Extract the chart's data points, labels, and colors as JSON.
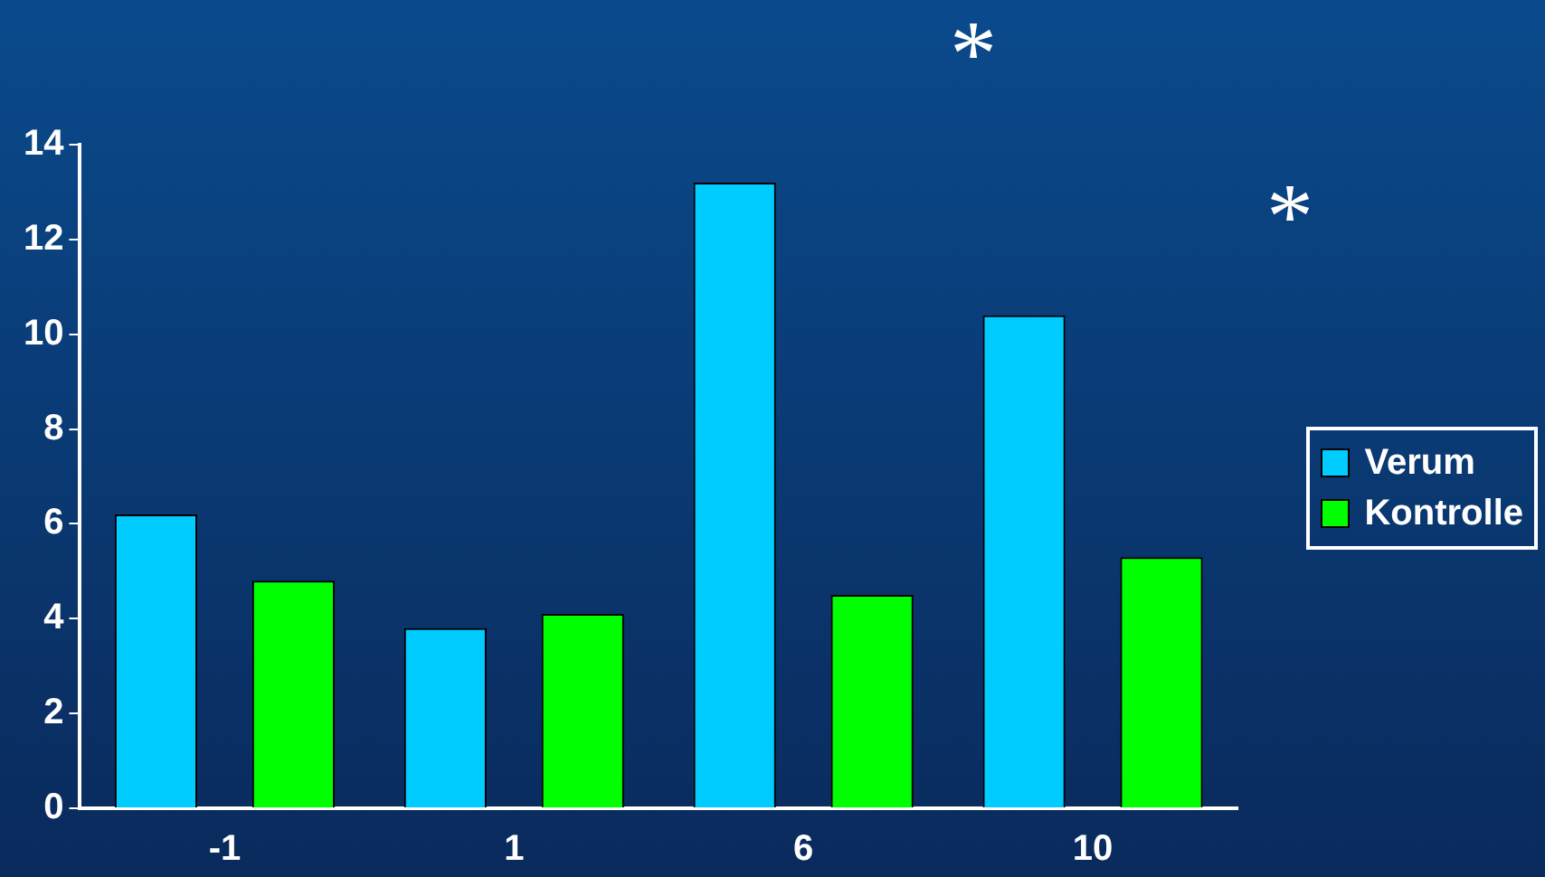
{
  "chart_data": {
    "type": "bar",
    "categories": [
      "-1",
      "1",
      "6",
      "10"
    ],
    "series": [
      {
        "name": "Verum",
        "color": "#00ccff",
        "values": [
          6.2,
          3.8,
          13.2,
          10.4
        ]
      },
      {
        "name": "Kontrolle",
        "color": "#00ff00",
        "values": [
          4.8,
          4.1,
          4.5,
          5.3
        ]
      }
    ],
    "ylim": [
      0,
      14
    ],
    "yticks": [
      0,
      2,
      4,
      6,
      8,
      10,
      12,
      14
    ],
    "grid": false,
    "legend": "right",
    "annotations": [
      "*",
      "*"
    ]
  }
}
